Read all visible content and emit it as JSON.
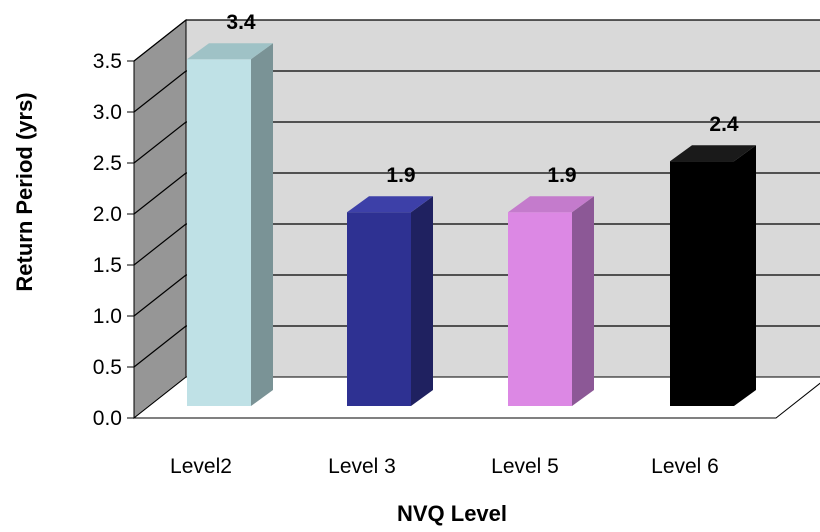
{
  "chart_data": {
    "type": "bar",
    "style": "3d-column",
    "categories": [
      "Level2",
      "Level 3",
      "Level 5",
      "Level 6"
    ],
    "values": [
      3.4,
      1.9,
      1.9,
      2.4
    ],
    "data_labels": [
      "3.4",
      "1.9",
      "1.9",
      "2.4"
    ],
    "title": "",
    "xlabel": "NVQ Level",
    "ylabel": "Return Period (yrs)",
    "ylim": [
      0,
      3.5
    ],
    "yticks": [
      "0.0",
      "0.5",
      "1.0",
      "1.5",
      "2.0",
      "2.5",
      "3.0",
      "3.5"
    ],
    "grid": true,
    "legend": "none",
    "colors": {
      "back_wall": "#d9d9d9",
      "side_wall": "#969696",
      "floor": "#ffffff",
      "bars": [
        {
          "front": "#bfe1e6",
          "side": "#7a9396",
          "top": "#9fc2c6"
        },
        {
          "front": "#2e3192",
          "side": "#1f2160",
          "top": "#3d40a8"
        },
        {
          "front": "#dc88e4",
          "side": "#8c5896",
          "top": "#c47bcc"
        },
        {
          "front": "#000000",
          "side": "#000000",
          "top": "#1a1a1a"
        }
      ]
    }
  }
}
